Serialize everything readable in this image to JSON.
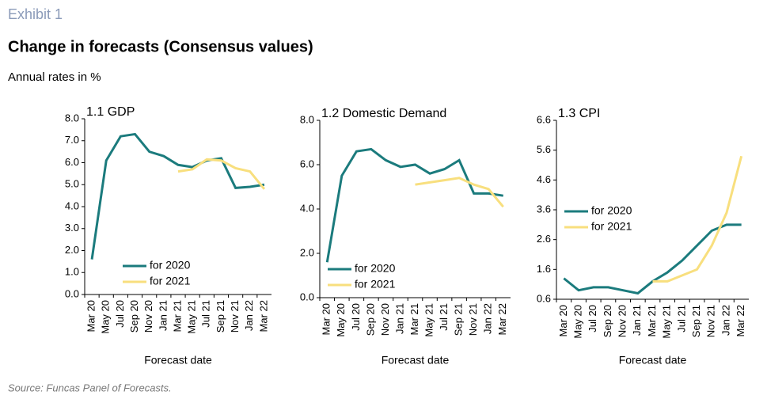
{
  "header": {
    "exhibit": "Exhibit 1",
    "title": "Change in forecasts (Consensus values)",
    "subtitle": "Annual rates in %"
  },
  "source": "Source: Funcas Panel of Forecasts.",
  "chart_data": [
    {
      "type": "line",
      "title": "1.1 GDP",
      "xlabel": "Forecast date",
      "legend": "lower center",
      "categories": [
        "Mar 20",
        "May 20",
        "Jul 20",
        "Sep 20",
        "Nov 20",
        "Jan 21",
        "Mar 21",
        "May 21",
        "Jul 21",
        "Sep 21",
        "Nov 21",
        "Jan 22",
        "Mar 22"
      ],
      "ylim": [
        0,
        8
      ],
      "yticks": [
        {
          "value": 0,
          "label": "0.0"
        },
        {
          "value": 1,
          "label": "1.0"
        },
        {
          "value": 2,
          "label": "2.0"
        },
        {
          "value": 3,
          "label": "3.0"
        },
        {
          "value": 4,
          "label": "4.0"
        },
        {
          "value": 5,
          "label": "5.0"
        },
        {
          "value": 6,
          "label": "6.0"
        },
        {
          "value": 7,
          "label": "7.0"
        },
        {
          "value": 8,
          "label": "8.0"
        }
      ],
      "series": [
        {
          "name": "for 2020",
          "color": "#1b7b7d",
          "values": [
            1.6,
            6.1,
            7.2,
            7.3,
            6.5,
            6.3,
            5.9,
            5.8,
            6.1,
            6.2,
            4.85,
            4.9,
            5.0
          ]
        },
        {
          "name": "for 2021",
          "color": "#f8df7e",
          "values": [
            null,
            null,
            null,
            null,
            null,
            null,
            5.6,
            5.7,
            6.15,
            6.1,
            5.75,
            5.6,
            4.8
          ]
        }
      ]
    },
    {
      "type": "line",
      "title": "1.2 Domestic Demand",
      "xlabel": "Forecast date",
      "legend": "lower left",
      "categories": [
        "Mar 20",
        "May 20",
        "Jul 20",
        "Sep 20",
        "Nov 20",
        "Jan 21",
        "Mar 21",
        "May 21",
        "Jul 21",
        "Sep 21",
        "Nov 21",
        "Jan 22",
        "Mar 22"
      ],
      "ylim": [
        0,
        8
      ],
      "yticks": [
        {
          "value": 0,
          "label": "0.0"
        },
        {
          "value": 2,
          "label": "2.0"
        },
        {
          "value": 4,
          "label": "4.0"
        },
        {
          "value": 6,
          "label": "6.0"
        },
        {
          "value": 8,
          "label": "8.0"
        }
      ],
      "series": [
        {
          "name": "for 2020",
          "color": "#1b7b7d",
          "values": [
            1.6,
            5.5,
            6.6,
            6.7,
            6.2,
            5.9,
            6.0,
            5.6,
            5.8,
            6.2,
            4.7,
            4.7,
            4.6
          ]
        },
        {
          "name": "for 2021",
          "color": "#f8df7e",
          "values": [
            null,
            null,
            null,
            null,
            null,
            null,
            5.1,
            5.2,
            5.3,
            5.4,
            5.1,
            4.9,
            4.1
          ]
        }
      ]
    },
    {
      "type": "line",
      "title": "1.3 CPI",
      "xlabel": "Forecast date",
      "legend": "center left",
      "categories": [
        "Mar 20",
        "May 20",
        "Jul 20",
        "Sep 20",
        "Nov 20",
        "Jan 21",
        "Mar 21",
        "May 21",
        "Jul 21",
        "Sep 21",
        "Nov 21",
        "Jan 22",
        "Mar 22"
      ],
      "ylim": [
        0.6,
        6.6
      ],
      "yticks": [
        0.6,
        1.6,
        2.6,
        3.6,
        4.6,
        5.6,
        6.6
      ],
      "series": [
        {
          "name": "for 2020",
          "color": "#1b7b7d",
          "values": [
            1.3,
            0.9,
            1.0,
            1.0,
            0.9,
            0.8,
            1.2,
            1.5,
            1.9,
            2.4,
            2.9,
            3.1,
            3.1
          ]
        },
        {
          "name": "for 2021",
          "color": "#f8df7e",
          "values": [
            null,
            null,
            null,
            null,
            null,
            null,
            1.2,
            1.2,
            1.4,
            1.6,
            2.4,
            3.5,
            5.4
          ]
        }
      ]
    }
  ]
}
